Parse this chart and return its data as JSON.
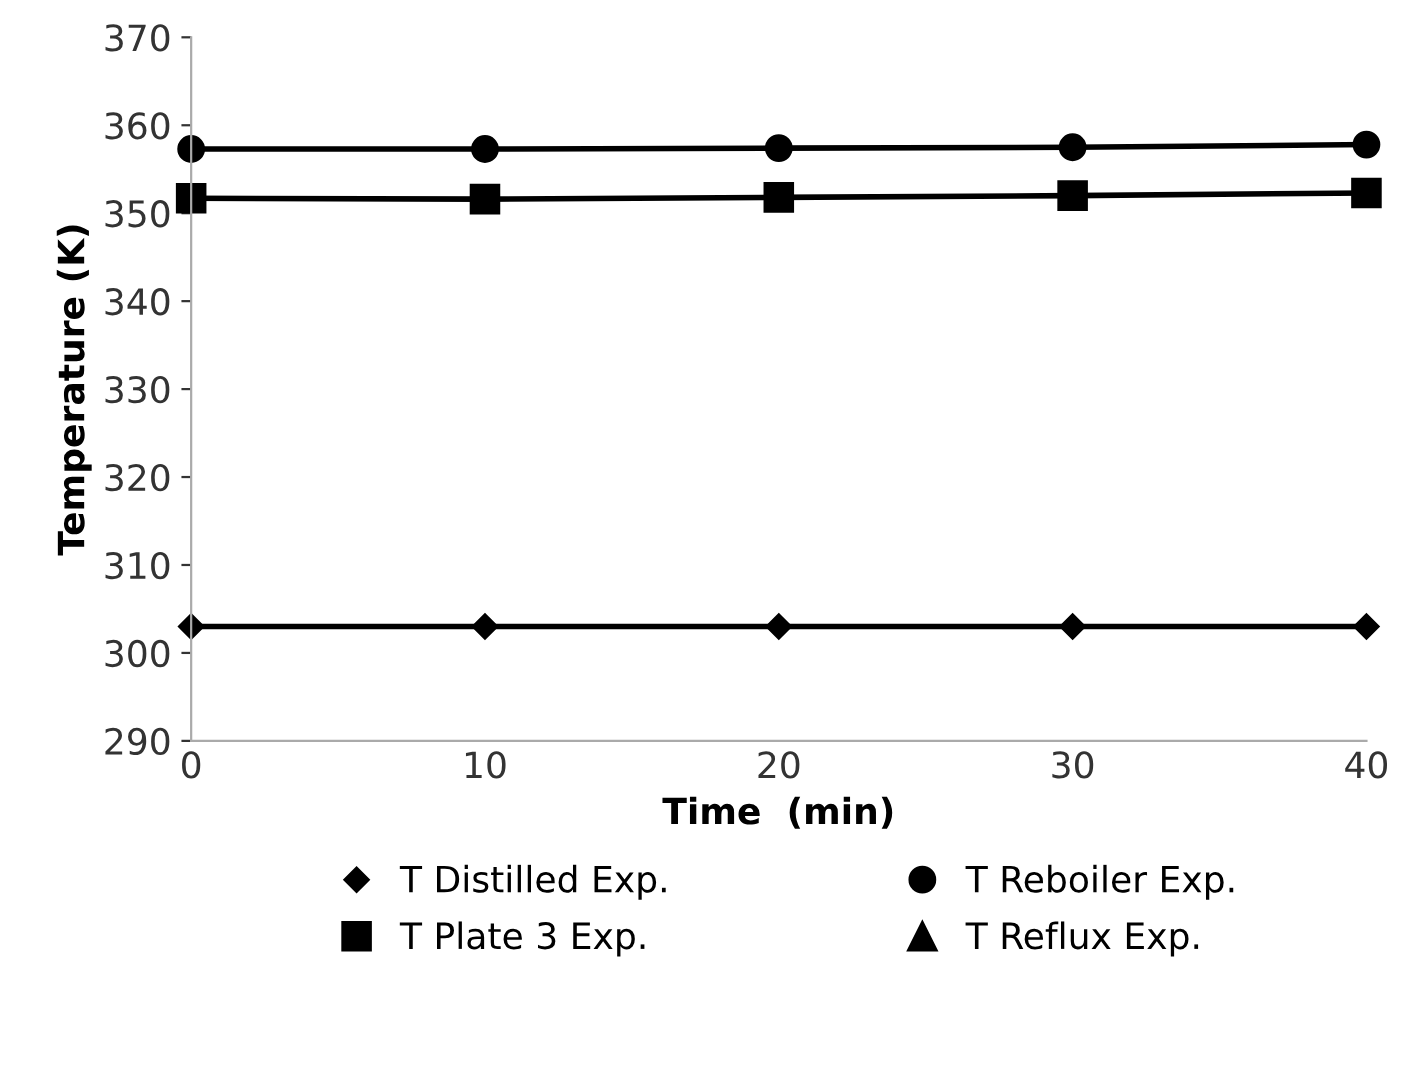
{
  "chart_data": {
    "type": "line",
    "xlabel": "Time  (min)",
    "ylabel": "Temperature (K)",
    "x": [
      0,
      10,
      20,
      30,
      40
    ],
    "series": [
      {
        "name": "T Distilled Exp.",
        "color": "#000000",
        "marker": "diamond",
        "values": [
          303,
          303,
          303,
          303,
          303
        ]
      },
      {
        "name": "T Plate 3 Exp.",
        "color": "#000000",
        "marker": "square",
        "values": [
          351.7,
          351.6,
          351.8,
          352,
          352.3
        ]
      },
      {
        "name": "T Reboiler Exp.",
        "color": "#000000",
        "marker": "circle",
        "values": [
          357.3,
          357.3,
          357.4,
          357.5,
          357.8
        ]
      },
      {
        "name": "T Reflux Exp.",
        "color": "#000000",
        "marker": "triangle",
        "values": [
          null,
          null,
          null,
          null,
          null
        ]
      }
    ],
    "xlim": [
      0,
      40
    ],
    "xticks": [
      0,
      10,
      20,
      30,
      40
    ],
    "ylim": [
      290,
      370
    ],
    "yticks": [
      290,
      300,
      310,
      320,
      330,
      340,
      350,
      360,
      370
    ],
    "grid": false,
    "legend": "bottom",
    "line_style": "solid"
  }
}
